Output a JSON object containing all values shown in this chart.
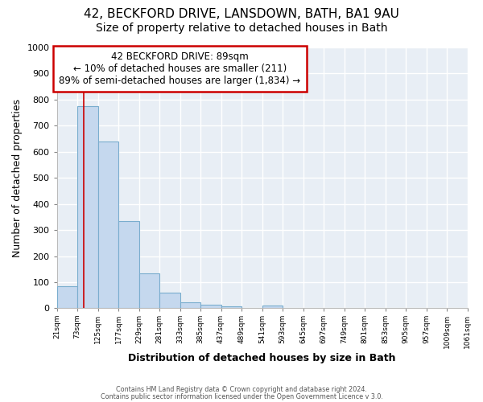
{
  "title1": "42, BECKFORD DRIVE, LANSDOWN, BATH, BA1 9AU",
  "title2": "Size of property relative to detached houses in Bath",
  "xlabel": "Distribution of detached houses by size in Bath",
  "ylabel": "Number of detached properties",
  "bin_edges": [
    21,
    73,
    125,
    177,
    229,
    281,
    333,
    385,
    437,
    489,
    541,
    593,
    645,
    697,
    749,
    801,
    853,
    905,
    957,
    1009,
    1061
  ],
  "bar_heights": [
    85,
    775,
    640,
    335,
    135,
    60,
    22,
    15,
    8,
    0,
    10,
    0,
    0,
    0,
    0,
    0,
    0,
    0,
    0,
    0
  ],
  "bar_color": "#c5d8ee",
  "bar_edge_color": "#7aadce",
  "property_line_x": 89,
  "property_line_color": "#cc0000",
  "ylim": [
    0,
    1000
  ],
  "annotation_title": "42 BECKFORD DRIVE: 89sqm",
  "annotation_line1": "← 10% of detached houses are smaller (211)",
  "annotation_line2": "89% of semi-detached houses are larger (1,834) →",
  "annotation_box_color": "#ffffff",
  "annotation_box_edge_color": "#cc0000",
  "footer1": "Contains HM Land Registry data © Crown copyright and database right 2024.",
  "footer2": "Contains public sector information licensed under the Open Government Licence v 3.0.",
  "tick_labels": [
    "21sqm",
    "73sqm",
    "125sqm",
    "177sqm",
    "229sqm",
    "281sqm",
    "333sqm",
    "385sqm",
    "437sqm",
    "489sqm",
    "541sqm",
    "593sqm",
    "645sqm",
    "697sqm",
    "749sqm",
    "801sqm",
    "853sqm",
    "905sqm",
    "957sqm",
    "1009sqm",
    "1061sqm"
  ],
  "background_color": "#ffffff",
  "plot_bg_color": "#e8eef5",
  "grid_color": "#ffffff",
  "title1_fontsize": 11,
  "title2_fontsize": 10,
  "xlabel_fontsize": 9,
  "ylabel_fontsize": 9,
  "annotation_fontsize": 8.5
}
